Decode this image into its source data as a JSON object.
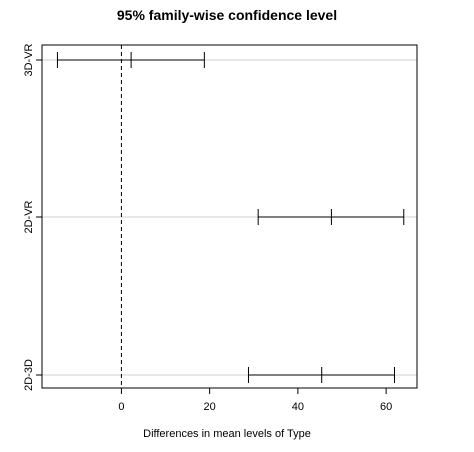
{
  "chart_data": {
    "type": "errorbar",
    "title": "95% family-wise confidence level",
    "xlabel": "Differences in mean levels of Type",
    "ylabel": "",
    "xlim": [
      -18,
      67
    ],
    "xticks": [
      0,
      20,
      40,
      60
    ],
    "reference_line": 0,
    "grid": false,
    "categories": [
      "3D-VR",
      "2D-VR",
      "2D-3D"
    ],
    "intervals": [
      {
        "label": "3D-VR",
        "lwr": -14.5,
        "diff": 2.2,
        "upr": 18.8
      },
      {
        "label": "2D-VR",
        "lwr": 31.0,
        "diff": 47.6,
        "upr": 64.0
      },
      {
        "label": "2D-3D",
        "lwr": 28.8,
        "diff": 45.4,
        "upr": 61.9
      }
    ]
  }
}
